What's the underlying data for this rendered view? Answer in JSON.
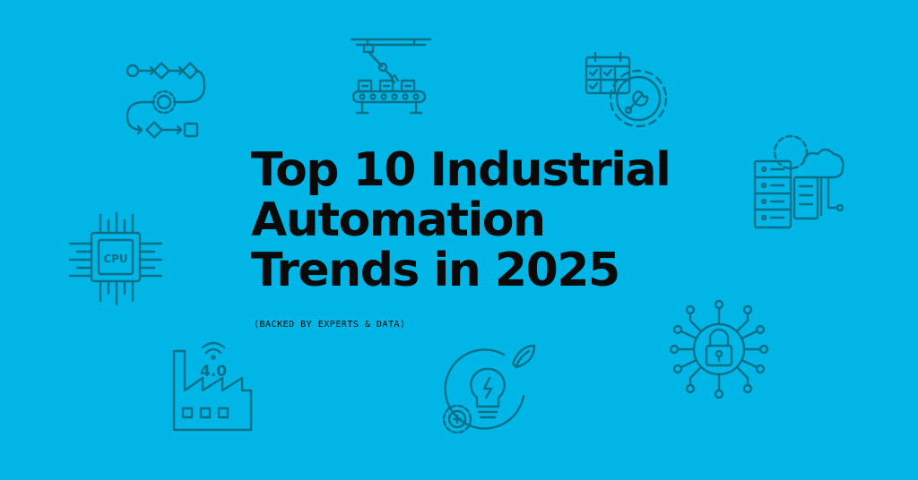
{
  "banner": {
    "title_lines": [
      "Top 10 Industrial",
      "Automation",
      "Trends in 2025"
    ],
    "subtitle": "(BACKED BY EXPERTS & DATA)",
    "background_color": "#00b6e6",
    "icon_color": "#0b6f88",
    "text_color": "#0a0a0a"
  },
  "icons": {
    "workflow": "workflow-gear-icon",
    "robot_arm": "robotic-arm-conveyor-icon",
    "schedule": "calendar-gear-wrench-icon",
    "server": "server-cloud-gear-icon",
    "cpu": {
      "name": "cpu-chip-icon",
      "label": "CPU"
    },
    "factory": {
      "name": "smart-factory-icon",
      "label": "4.0"
    },
    "energy": "lightbulb-leaf-gear-icon",
    "security": "padlock-network-icon"
  }
}
